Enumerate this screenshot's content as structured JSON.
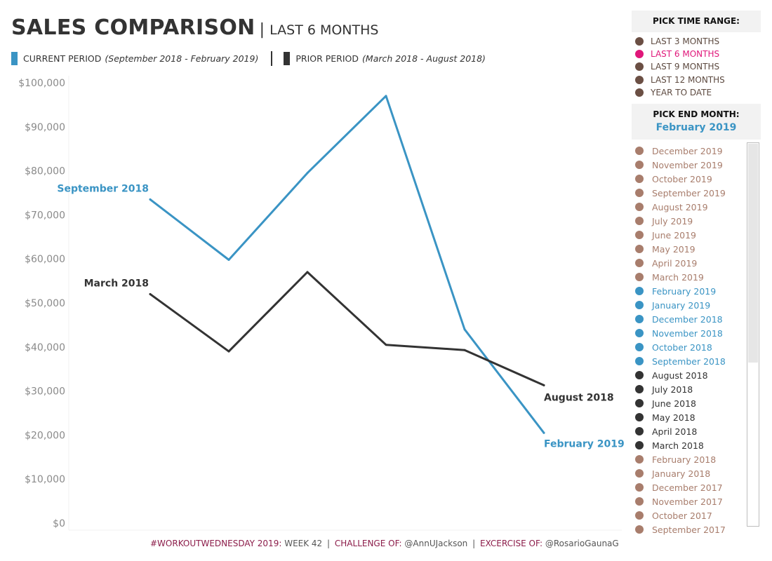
{
  "header": {
    "title": "SALES COMPARISON",
    "separator": "|",
    "subtitle": "LAST 6 MONTHS"
  },
  "legend": {
    "current_label": "CURRENT PERIOD",
    "current_range": "(September 2018 - February 2019)",
    "prior_label": "PRIOR PERIOD",
    "prior_range": "(March 2018 - August 2018)",
    "current_color": "#3a94c4",
    "prior_color": "#333333"
  },
  "chart_data": {
    "type": "line",
    "x": [
      1,
      2,
      3,
      4,
      5,
      6
    ],
    "ylim": [
      0,
      100000
    ],
    "yticks": [
      0,
      10000,
      20000,
      30000,
      40000,
      50000,
      60000,
      70000,
      80000,
      90000,
      100000
    ],
    "ytick_labels": [
      "$0",
      "$10,000",
      "$20,000",
      "$30,000",
      "$40,000",
      "$50,000",
      "$60,000",
      "$70,000",
      "$80,000",
      "$90,000",
      "$100,000"
    ],
    "grid": false,
    "series": [
      {
        "name": "CURRENT PERIOD",
        "color": "#3a94c4",
        "values": [
          73500,
          59800,
          79500,
          97000,
          44000,
          20500
        ],
        "start_label": "September 2018",
        "end_label": "February 2019"
      },
      {
        "name": "PRIOR PERIOD",
        "color": "#333333",
        "values": [
          52000,
          39000,
          57000,
          40500,
          39300,
          31300
        ],
        "start_label": "March 2018",
        "end_label": "August 2018"
      }
    ]
  },
  "footer": {
    "tag": "#WORKOUTWEDNESDAY 2019:",
    "week": "WEEK 42",
    "sep1": "|",
    "challenge_label": "CHALLENGE OF:",
    "challenge_user": "@AnnUJackson",
    "sep2": "|",
    "exercise_label": "EXCERCISE OF:",
    "exercise_user": "@RosarioGaunaG"
  },
  "time_range": {
    "header": "PICK TIME RANGE:",
    "options": [
      {
        "label": "LAST 3 MONTHS",
        "selected": false
      },
      {
        "label": "LAST 6 MONTHS",
        "selected": true
      },
      {
        "label": "LAST 9 MONTHS",
        "selected": false
      },
      {
        "label": "LAST 12 MONTHS",
        "selected": false
      },
      {
        "label": "YEAR TO DATE",
        "selected": false
      }
    ],
    "dot_color": "#6b4f44",
    "selected_color": "#e0177a"
  },
  "end_month": {
    "header": "PICK END MONTH:",
    "value": "February 2019",
    "months": [
      {
        "label": "December 2019",
        "group": "other"
      },
      {
        "label": "November 2019",
        "group": "other"
      },
      {
        "label": "October 2019",
        "group": "other"
      },
      {
        "label": "September 2019",
        "group": "other"
      },
      {
        "label": "August 2019",
        "group": "other"
      },
      {
        "label": "July 2019",
        "group": "other"
      },
      {
        "label": "June 2019",
        "group": "other"
      },
      {
        "label": "May 2019",
        "group": "other"
      },
      {
        "label": "April 2019",
        "group": "other"
      },
      {
        "label": "March 2019",
        "group": "other"
      },
      {
        "label": "February 2019",
        "group": "current"
      },
      {
        "label": "January 2019",
        "group": "current"
      },
      {
        "label": "December 2018",
        "group": "current"
      },
      {
        "label": "November 2018",
        "group": "current"
      },
      {
        "label": "October 2018",
        "group": "current"
      },
      {
        "label": "September 2018",
        "group": "current"
      },
      {
        "label": "August 2018",
        "group": "prior"
      },
      {
        "label": "July 2018",
        "group": "prior"
      },
      {
        "label": "June 2018",
        "group": "prior"
      },
      {
        "label": "May 2018",
        "group": "prior"
      },
      {
        "label": "April 2018",
        "group": "prior"
      },
      {
        "label": "March 2018",
        "group": "prior"
      },
      {
        "label": "February 2018",
        "group": "other"
      },
      {
        "label": "January 2018",
        "group": "other"
      },
      {
        "label": "December 2017",
        "group": "other"
      },
      {
        "label": "November 2017",
        "group": "other"
      },
      {
        "label": "October 2017",
        "group": "other"
      },
      {
        "label": "September 2017",
        "group": "other"
      }
    ],
    "colors": {
      "other": "#a87d6c",
      "current": "#3a94c4",
      "prior": "#333333"
    }
  }
}
